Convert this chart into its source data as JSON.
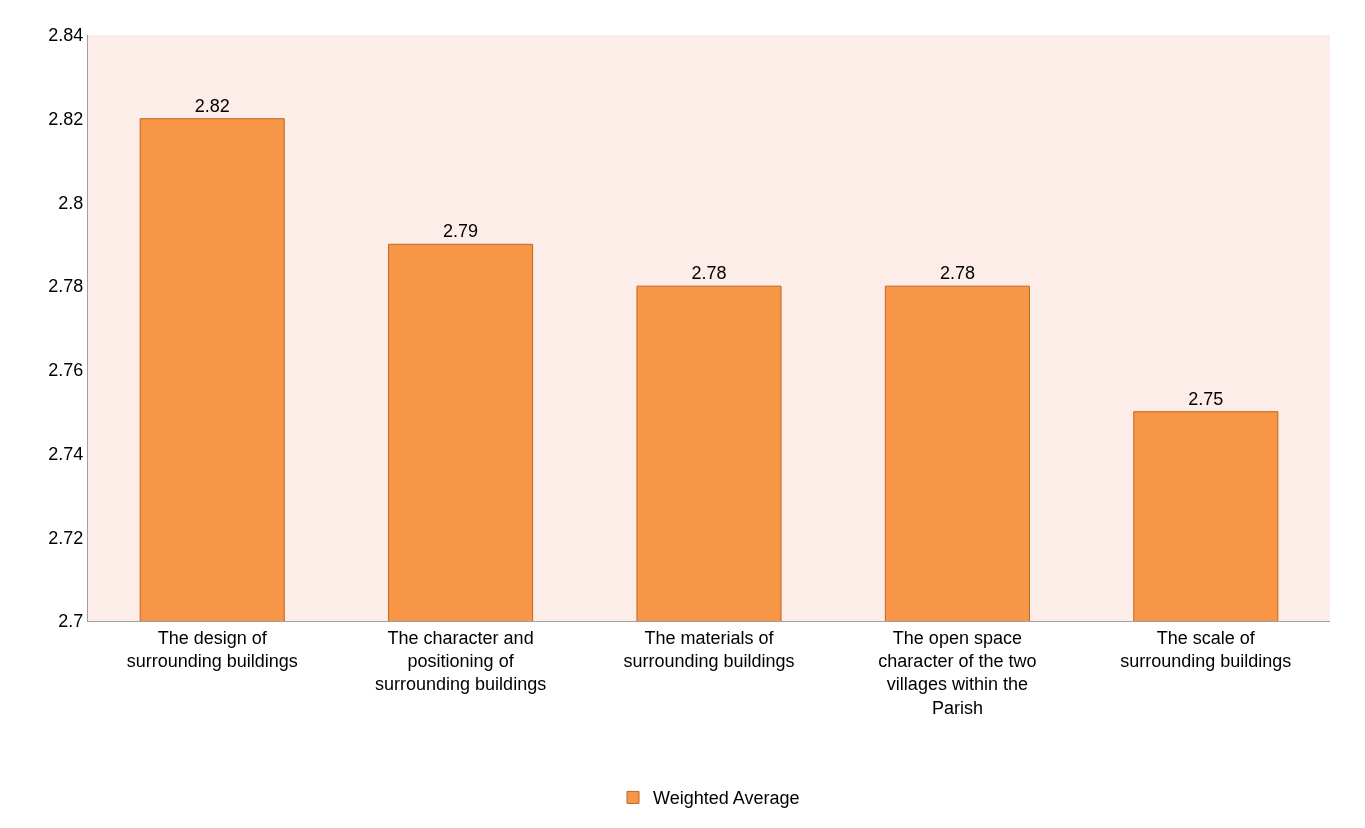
{
  "chart_data": {
    "type": "bar",
    "categories": [
      "The design of surrounding buildings",
      "The character and positioning of surrounding buildings",
      "The materials of surrounding buildings",
      "The open space character of the two villages within the Parish",
      "The scale of surrounding buildings"
    ],
    "series": [
      {
        "name": "Weighted Average",
        "color": "#f79646",
        "values": [
          2.82,
          2.79,
          2.78,
          2.78,
          2.75
        ]
      }
    ],
    "ylim": [
      2.7,
      2.84
    ],
    "yticks": [
      2.7,
      2.72,
      2.74,
      2.76,
      2.78,
      2.8,
      2.82,
      2.84
    ],
    "data_labels": true,
    "grid": false,
    "legend": "bottom"
  }
}
